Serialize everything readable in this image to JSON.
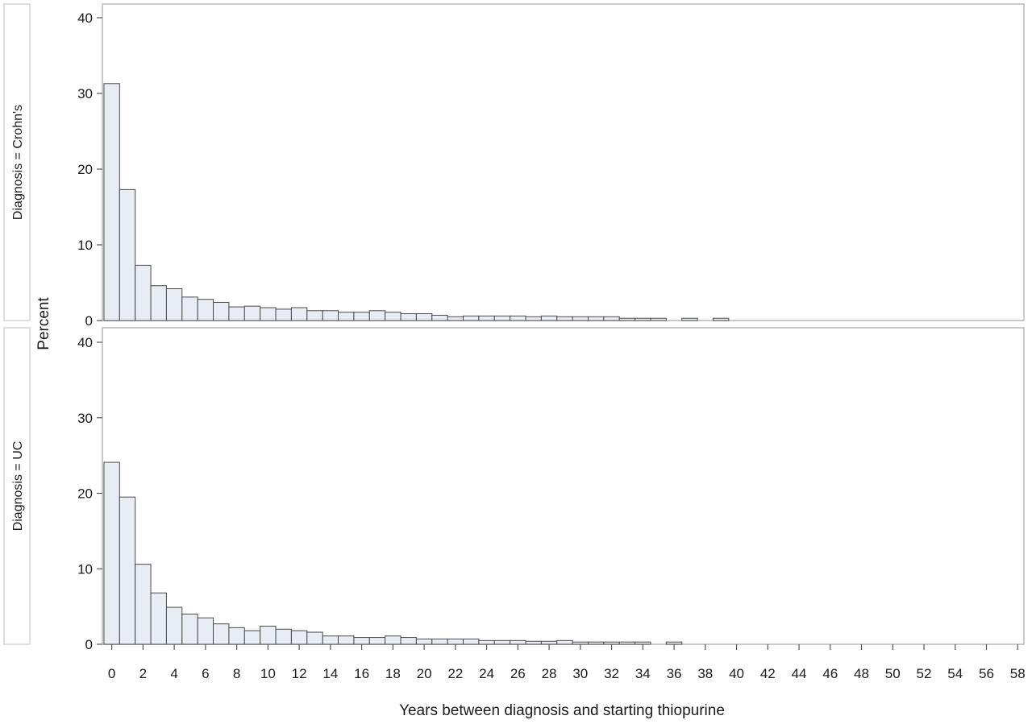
{
  "chart_data": {
    "type": "bar",
    "xlabel": "Years between diagnosis and starting thiopurine",
    "ylabel": "Percent",
    "ylim": [
      0,
      40
    ],
    "yticks": [
      0,
      10,
      20,
      30,
      40
    ],
    "xlim": [
      -0.6,
      58.4
    ],
    "xticks": [
      0,
      2,
      4,
      6,
      8,
      10,
      12,
      14,
      16,
      18,
      20,
      22,
      24,
      26,
      28,
      30,
      32,
      34,
      36,
      38,
      40,
      42,
      44,
      46,
      48,
      50,
      52,
      54,
      56,
      58
    ],
    "bin_width": 1,
    "grid": false,
    "colors": {
      "bar_fill": "#e8ecf5",
      "bar_stroke": "#4a4a4a",
      "frame": "#b8b8b8",
      "strip_frame": "#d4d4d4"
    },
    "panels": [
      {
        "strip_label": "Diagnosis = Crohn's",
        "x": [
          0,
          1,
          2,
          3,
          4,
          5,
          6,
          7,
          8,
          9,
          10,
          11,
          12,
          13,
          14,
          15,
          16,
          17,
          18,
          19,
          20,
          21,
          22,
          23,
          24,
          25,
          26,
          27,
          28,
          29,
          30,
          31,
          32,
          33,
          34,
          35,
          37,
          39
        ],
        "values": [
          31.3,
          17.3,
          7.3,
          4.6,
          4.2,
          3.1,
          2.8,
          2.4,
          1.8,
          1.9,
          1.7,
          1.5,
          1.7,
          1.3,
          1.3,
          1.1,
          1.1,
          1.3,
          1.1,
          0.9,
          0.9,
          0.7,
          0.5,
          0.6,
          0.6,
          0.6,
          0.6,
          0.5,
          0.6,
          0.5,
          0.5,
          0.5,
          0.5,
          0.3,
          0.3,
          0.3,
          0.3,
          0.3
        ]
      },
      {
        "strip_label": "Diagnosis = UC",
        "x": [
          0,
          1,
          2,
          3,
          4,
          5,
          6,
          7,
          8,
          9,
          10,
          11,
          12,
          13,
          14,
          15,
          16,
          17,
          18,
          19,
          20,
          21,
          22,
          23,
          24,
          25,
          26,
          27,
          28,
          29,
          30,
          31,
          32,
          33,
          34,
          36
        ],
        "values": [
          24.1,
          19.5,
          10.6,
          6.8,
          4.9,
          4.0,
          3.5,
          2.7,
          2.2,
          1.8,
          2.4,
          2.0,
          1.8,
          1.6,
          1.1,
          1.1,
          0.9,
          0.9,
          1.1,
          0.9,
          0.7,
          0.7,
          0.7,
          0.7,
          0.5,
          0.5,
          0.5,
          0.4,
          0.4,
          0.5,
          0.3,
          0.3,
          0.3,
          0.3,
          0.3,
          0.3
        ]
      }
    ]
  }
}
